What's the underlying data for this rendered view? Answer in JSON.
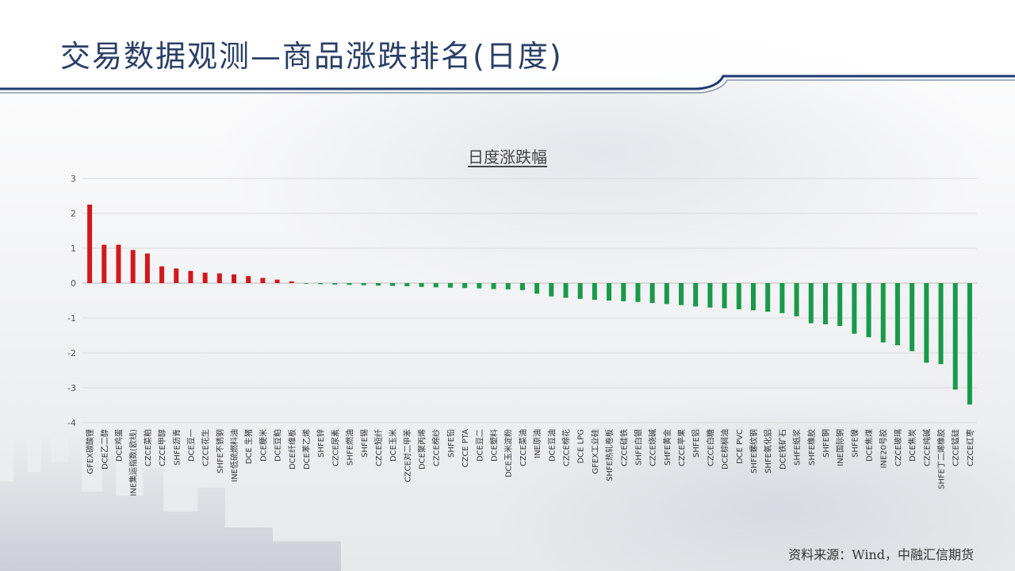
{
  "slide": {
    "title": "交易数据观测—商品涨跌排名(日度)",
    "source": "资料来源：Wind，中融汇信期货"
  },
  "colors": {
    "up": "#d0191f",
    "down": "#19994a",
    "title": "#2a3f66",
    "accent_line": "#1d3a70"
  },
  "chart_data": {
    "type": "bar",
    "title": "日度涨跌幅",
    "xlabel": "",
    "ylabel": "",
    "ylim": [
      -4,
      3
    ],
    "yticks": [
      3,
      2,
      1,
      0,
      -1,
      -2,
      -3,
      -4
    ],
    "grid": true,
    "legend": "none",
    "categories": [
      "GFEX碳酸锂",
      "DCE乙二醇",
      "DCE鸡蛋",
      "INE集运指数(欧线)",
      "CZCE菜粕",
      "CZCE甲醇",
      "SHFE沥青",
      "DCE豆一",
      "CZCE花生",
      "SHFE不锈钢",
      "INE低硫燃料油",
      "DCE 生猪",
      "DCE粳米",
      "DCE豆粕",
      "DCE纤维板",
      "DCE苯乙烯",
      "SHFE锌",
      "CZCE尿素",
      "SHFE燃油",
      "SHFE锡",
      "CZCE短纤",
      "DCE玉米",
      "CZCE对二甲苯",
      "DCE聚丙烯",
      "CZCE棉纱",
      "SHFE铅",
      "CZCE PTA",
      "DCE豆二",
      "DCE塑料",
      "DCE玉米淀粉",
      "CZCE菜油",
      "INE原油",
      "DCE豆油",
      "CZCE棉花",
      "DCE LPG",
      "GFEX工业硅",
      "SHFE热轧卷板",
      "CZCE硅铁",
      "SHFE白银",
      "CZCE烧碱",
      "SHFE黄金",
      "CZCE苹果",
      "SHFE铝",
      "CZCE白糖",
      "DCE棕榈油",
      "DCE PVC",
      "SHFE螺纹钢",
      "SHFE氧化铝",
      "DCE铁矿石",
      "SHFE纸浆",
      "SHFE橡胶",
      "SHFE铜",
      "INE国际铜",
      "SHFE镍",
      "DCE焦煤",
      "INE20号胶",
      "CZCE玻璃",
      "DCE焦炭",
      "CZCE纯碱",
      "SHFE丁二烯橡胶",
      "CZCE锰硅",
      "CZCE红枣"
    ],
    "values": [
      2.25,
      1.1,
      1.1,
      0.95,
      0.85,
      0.48,
      0.42,
      0.35,
      0.3,
      0.28,
      0.25,
      0.2,
      0.15,
      0.1,
      0.05,
      -0.02,
      -0.03,
      -0.04,
      -0.05,
      -0.06,
      -0.07,
      -0.08,
      -0.09,
      -0.11,
      -0.12,
      -0.13,
      -0.14,
      -0.15,
      -0.17,
      -0.18,
      -0.2,
      -0.3,
      -0.38,
      -0.42,
      -0.45,
      -0.48,
      -0.5,
      -0.52,
      -0.54,
      -0.57,
      -0.6,
      -0.63,
      -0.67,
      -0.7,
      -0.72,
      -0.75,
      -0.78,
      -0.82,
      -0.86,
      -0.95,
      -1.15,
      -1.18,
      -1.23,
      -1.45,
      -1.55,
      -1.7,
      -1.78,
      -1.95,
      -2.28,
      -2.32,
      -3.05,
      -3.48
    ]
  }
}
